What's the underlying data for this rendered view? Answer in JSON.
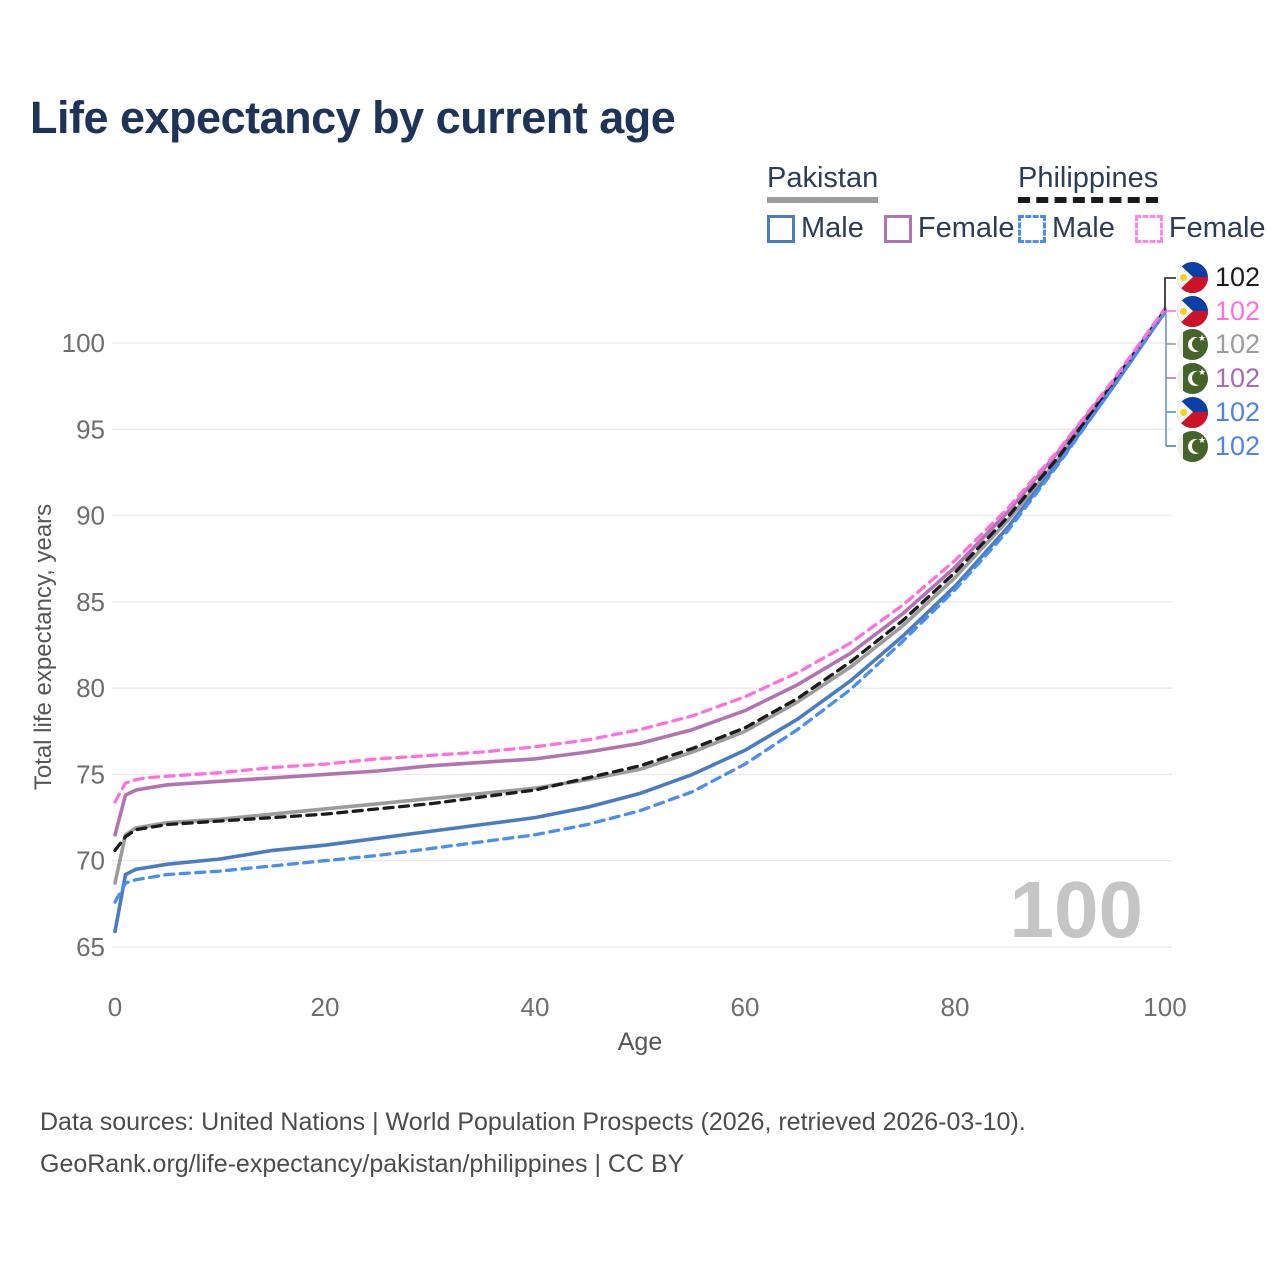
{
  "title": "Life expectancy by current age",
  "legend": {
    "groups": [
      {
        "country": "Pakistan",
        "underline": "solid",
        "underline_color": "#9c9c9c",
        "items": [
          {
            "label": "Male",
            "color": "#4a7cc2",
            "dashed": false
          },
          {
            "label": "Female",
            "color": "#b273b2",
            "dashed": false
          }
        ]
      },
      {
        "country": "Philippines",
        "underline": "dashed",
        "underline_color": "#1a1a1a",
        "items": [
          {
            "label": "Male",
            "color": "#4a8ef0",
            "dashed": true
          },
          {
            "label": "Female",
            "color": "#ff86e3",
            "dashed": true
          }
        ]
      }
    ]
  },
  "chart_data": {
    "type": "line",
    "title": "Life expectancy by current age",
    "xlabel": "Age",
    "ylabel": "Total life expectancy, years",
    "xlim": [
      0,
      100
    ],
    "ylim": [
      65,
      102
    ],
    "xticks": [
      0,
      20,
      40,
      60,
      80,
      100
    ],
    "yticks": [
      65,
      70,
      75,
      80,
      85,
      90,
      95,
      100
    ],
    "grid": "horizontal",
    "legend_position": "top-right",
    "watermark": "100",
    "x": [
      0,
      1,
      2,
      3,
      5,
      10,
      15,
      20,
      25,
      30,
      35,
      40,
      45,
      50,
      55,
      60,
      65,
      70,
      75,
      80,
      85,
      90,
      95,
      100
    ],
    "series": [
      {
        "name": "Pakistan Both sexes",
        "country": "pakistan",
        "sex": "both",
        "color": "#9c9c9c",
        "dashed": false,
        "values": [
          68.7,
          71.5,
          71.9,
          72.0,
          72.2,
          72.4,
          72.7,
          73.0,
          73.3,
          73.6,
          73.9,
          74.2,
          74.7,
          75.3,
          76.3,
          77.5,
          79.2,
          81.2,
          83.6,
          86.4,
          89.7,
          93.4,
          97.5,
          101.8
        ]
      },
      {
        "name": "Pakistan Male",
        "country": "pakistan",
        "sex": "male",
        "color": "#4a7cc2",
        "dashed": false,
        "values": [
          65.9,
          69.2,
          69.5,
          69.6,
          69.8,
          70.1,
          70.6,
          70.9,
          71.3,
          71.7,
          72.1,
          72.5,
          73.1,
          73.9,
          75.0,
          76.4,
          78.2,
          80.4,
          83.0,
          85.9,
          89.3,
          93.2,
          97.4,
          101.8
        ]
      },
      {
        "name": "Pakistan Female",
        "country": "pakistan",
        "sex": "female",
        "color": "#b273b2",
        "dashed": false,
        "values": [
          71.5,
          73.8,
          74.1,
          74.2,
          74.4,
          74.6,
          74.8,
          75.0,
          75.2,
          75.5,
          75.7,
          75.9,
          76.3,
          76.8,
          77.6,
          78.7,
          80.2,
          82.0,
          84.3,
          87.0,
          90.2,
          93.8,
          97.7,
          101.9
        ]
      },
      {
        "name": "Philippines Both sexes",
        "country": "philippines",
        "sex": "both",
        "color": "#1c1c1c",
        "dashed": true,
        "values": [
          70.6,
          71.4,
          71.8,
          71.9,
          72.1,
          72.3,
          72.5,
          72.7,
          73.0,
          73.3,
          73.7,
          74.1,
          74.8,
          75.5,
          76.5,
          77.7,
          79.4,
          81.5,
          83.9,
          86.7,
          89.9,
          93.5,
          97.6,
          101.9
        ]
      },
      {
        "name": "Philippines Male",
        "country": "philippines",
        "sex": "male",
        "color": "#4a8ef0",
        "dashed": true,
        "values": [
          67.6,
          68.7,
          68.9,
          69.0,
          69.2,
          69.4,
          69.7,
          70.0,
          70.3,
          70.7,
          71.1,
          71.5,
          72.1,
          72.9,
          74.0,
          75.6,
          77.6,
          79.9,
          82.7,
          85.7,
          89.1,
          93.1,
          97.4,
          101.8
        ]
      },
      {
        "name": "Philippines Female",
        "country": "philippines",
        "sex": "female",
        "color": "#ff70df",
        "dashed": true,
        "values": [
          73.4,
          74.5,
          74.7,
          74.8,
          74.9,
          75.1,
          75.4,
          75.6,
          75.9,
          76.1,
          76.3,
          76.6,
          77.0,
          77.6,
          78.4,
          79.5,
          80.9,
          82.6,
          84.8,
          87.4,
          90.4,
          93.9,
          97.8,
          102.0
        ]
      }
    ],
    "end_labels": [
      {
        "flag": "philippines",
        "value": "102",
        "color": "#1c1c1c"
      },
      {
        "flag": "philippines",
        "value": "102",
        "color": "#ff70df"
      },
      {
        "flag": "pakistan",
        "value": "102",
        "color": "#9c9c9c"
      },
      {
        "flag": "pakistan",
        "value": "102",
        "color": "#a76cb5"
      },
      {
        "flag": "philippines",
        "value": "102",
        "color": "#4c85e4"
      },
      {
        "flag": "pakistan",
        "value": "102",
        "color": "#4c85e4"
      }
    ]
  },
  "footer": {
    "line1": "Data sources: United Nations | World Population Prospects (2026, retrieved 2026-03-10).",
    "line2": "GeoRank.org/life-expectancy/pakistan/philippines | CC BY"
  }
}
